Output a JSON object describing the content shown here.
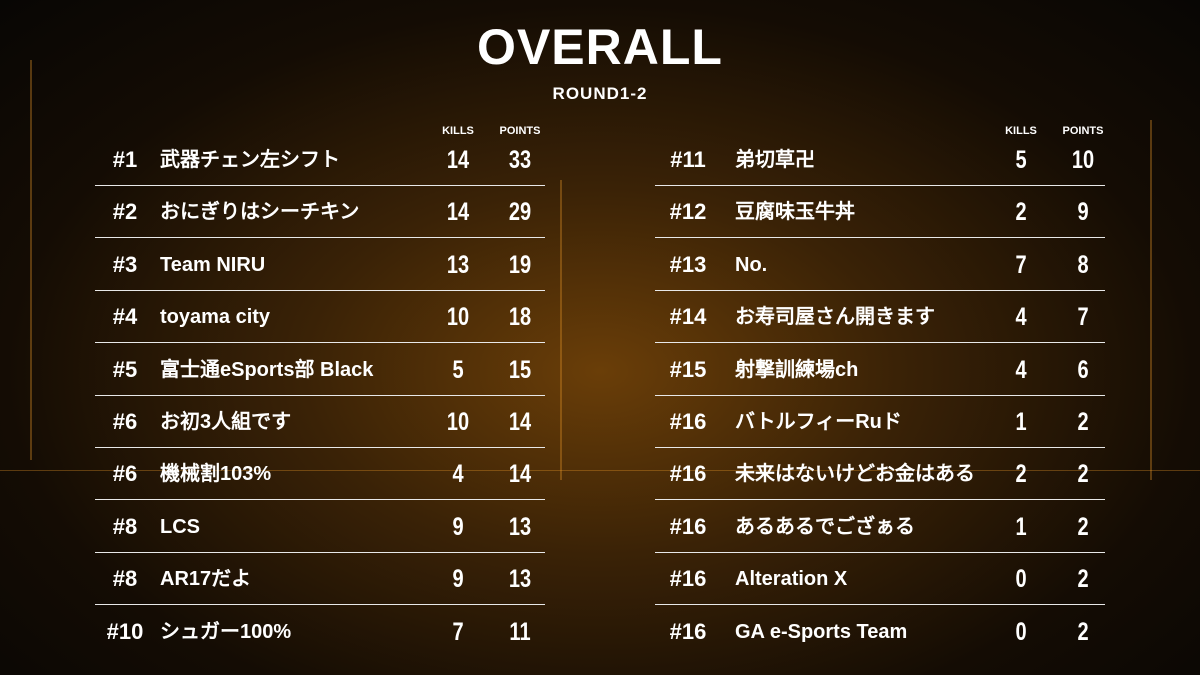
{
  "header": {
    "title": "OVERALL",
    "subtitle": "ROUND1-2"
  },
  "tables": [
    {
      "columns": [
        "KILLS",
        "POINTS"
      ],
      "rows": [
        [
          "#1",
          "武器チェン左シフト",
          14,
          33
        ],
        [
          "#2",
          "おにぎりはシーチキン",
          14,
          29
        ],
        [
          "#3",
          "Team NIRU",
          13,
          19
        ],
        [
          "#4",
          "toyama city",
          10,
          18
        ],
        [
          "#5",
          "富士通eSports部 Black",
          5,
          15
        ],
        [
          "#6",
          "お初3人組です",
          10,
          14
        ],
        [
          "#6",
          "機械割103%",
          4,
          14
        ],
        [
          "#8",
          "LCS",
          9,
          13
        ],
        [
          "#8",
          "AR17だよ",
          9,
          13
        ],
        [
          "#10",
          "シュガー100%",
          7,
          11
        ]
      ]
    },
    {
      "columns": [
        "KILLS",
        "POINTS"
      ],
      "rows": [
        [
          "#11",
          "弟切草卍",
          5,
          10
        ],
        [
          "#12",
          "豆腐味玉牛丼",
          2,
          9
        ],
        [
          "#13",
          "No.",
          7,
          8
        ],
        [
          "#14",
          "お寿司屋さん開きます",
          4,
          7
        ],
        [
          "#15",
          "射撃訓練場ch",
          4,
          6
        ],
        [
          "#16",
          "バトルフィーRuド",
          1,
          2
        ],
        [
          "#16",
          "未来はないけどお金はある",
          2,
          2
        ],
        [
          "#16",
          "あるあるでござぁる",
          1,
          2
        ],
        [
          "#16",
          "Alteration X",
          0,
          2
        ],
        [
          "#16",
          "GA e-Sports Team",
          0,
          2
        ]
      ]
    }
  ]
}
